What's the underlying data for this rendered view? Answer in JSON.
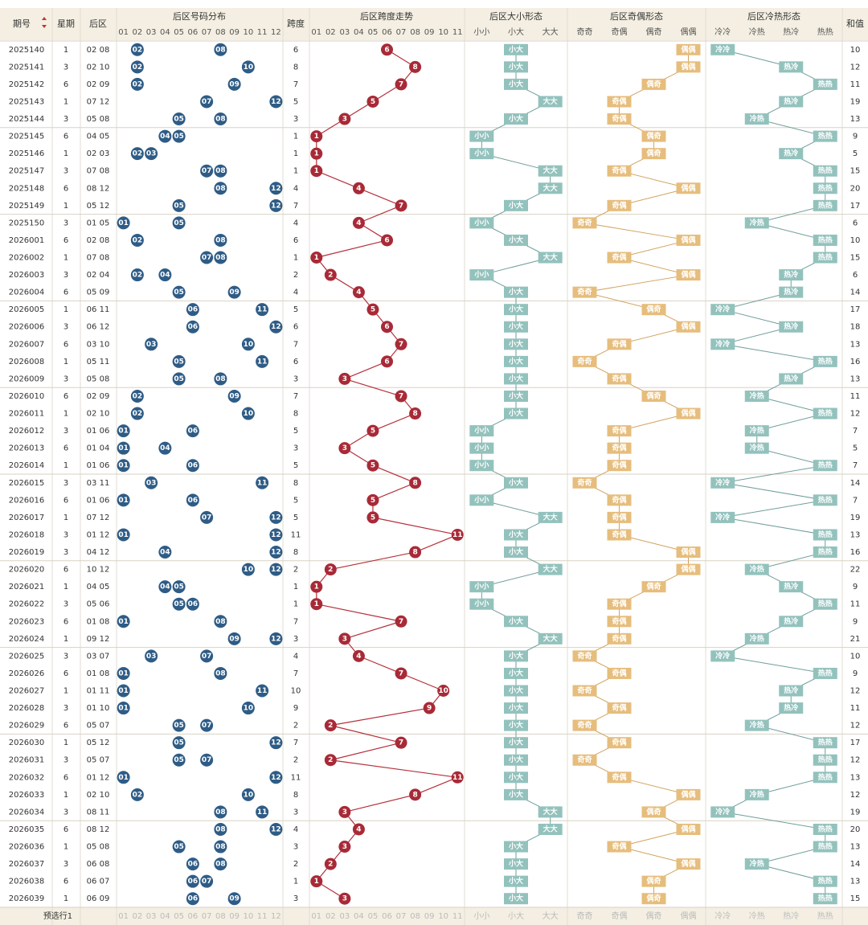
{
  "header": {
    "period": "期号",
    "weekday": "星期",
    "back": "后区",
    "dist": "后区号码分布",
    "span": "跨度",
    "trend": "后区跨度走势",
    "size": "后区大小形态",
    "parity": "后区奇偶形态",
    "hotcold": "后区冷热形态",
    "sum": "和值"
  },
  "number_labels": [
    "01",
    "02",
    "03",
    "04",
    "05",
    "06",
    "07",
    "08",
    "09",
    "10",
    "11",
    "12"
  ],
  "span_labels": [
    "01",
    "02",
    "03",
    "04",
    "05",
    "06",
    "07",
    "08",
    "09",
    "10",
    "11"
  ],
  "size_labels": [
    "小小",
    "小大",
    "大大"
  ],
  "parity_labels": [
    "奇奇",
    "奇偶",
    "偶奇",
    "偶偶"
  ],
  "hotcold_labels": [
    "冷冷",
    "冷热",
    "热冷",
    "热热"
  ],
  "rows": [
    [
      "2025140",
      1,
      "02 08",
      [
        "02",
        "08"
      ],
      6,
      "小大",
      "偶偶",
      "冷冷",
      10
    ],
    [
      "2025141",
      3,
      "02 10",
      [
        "02",
        "10"
      ],
      8,
      "小大",
      "偶偶",
      "热冷",
      12
    ],
    [
      "2025142",
      6,
      "02 09",
      [
        "02",
        "09"
      ],
      7,
      "小大",
      "偶奇",
      "热热",
      11
    ],
    [
      "2025143",
      1,
      "07 12",
      [
        "07",
        "12"
      ],
      5,
      "大大",
      "奇偶",
      "热冷",
      19
    ],
    [
      "2025144",
      3,
      "05 08",
      [
        "05",
        "08"
      ],
      3,
      "小大",
      "奇偶",
      "冷热",
      13
    ],
    [
      "2025145",
      6,
      "04 05",
      [
        "04",
        "05"
      ],
      1,
      "小小",
      "偶奇",
      "热热",
      9
    ],
    [
      "2025146",
      1,
      "02 03",
      [
        "02",
        "03"
      ],
      1,
      "小小",
      "偶奇",
      "热冷",
      5
    ],
    [
      "2025147",
      3,
      "07 08",
      [
        "07",
        "08"
      ],
      1,
      "大大",
      "奇偶",
      "热热",
      15
    ],
    [
      "2025148",
      6,
      "08 12",
      [
        "08",
        "12"
      ],
      4,
      "大大",
      "偶偶",
      "热热",
      20
    ],
    [
      "2025149",
      1,
      "05 12",
      [
        "05",
        "12"
      ],
      7,
      "小大",
      "奇偶",
      "热热",
      17
    ],
    [
      "2025150",
      3,
      "01 05",
      [
        "01",
        "05"
      ],
      4,
      "小小",
      "奇奇",
      "冷热",
      6
    ],
    [
      "2026001",
      6,
      "02 08",
      [
        "02",
        "08"
      ],
      6,
      "小大",
      "偶偶",
      "热热",
      10
    ],
    [
      "2026002",
      1,
      "07 08",
      [
        "07",
        "08"
      ],
      1,
      "大大",
      "奇偶",
      "热热",
      15
    ],
    [
      "2026003",
      3,
      "02 04",
      [
        "02",
        "04"
      ],
      2,
      "小小",
      "偶偶",
      "热冷",
      6
    ],
    [
      "2026004",
      6,
      "05 09",
      [
        "05",
        "09"
      ],
      4,
      "小大",
      "奇奇",
      "热冷",
      14
    ],
    [
      "2026005",
      1,
      "06 11",
      [
        "06",
        "11"
      ],
      5,
      "小大",
      "偶奇",
      "冷冷",
      17
    ],
    [
      "2026006",
      3,
      "06 12",
      [
        "06",
        "12"
      ],
      6,
      "小大",
      "偶偶",
      "热冷",
      18
    ],
    [
      "2026007",
      6,
      "03 10",
      [
        "03",
        "10"
      ],
      7,
      "小大",
      "奇偶",
      "冷冷",
      13
    ],
    [
      "2026008",
      1,
      "05 11",
      [
        "05",
        "11"
      ],
      6,
      "小大",
      "奇奇",
      "热热",
      16
    ],
    [
      "2026009",
      3,
      "05 08",
      [
        "05",
        "08"
      ],
      3,
      "小大",
      "奇偶",
      "热冷",
      13
    ],
    [
      "2026010",
      6,
      "02 09",
      [
        "02",
        "09"
      ],
      7,
      "小大",
      "偶奇",
      "冷热",
      11
    ],
    [
      "2026011",
      1,
      "02 10",
      [
        "02",
        "10"
      ],
      8,
      "小大",
      "偶偶",
      "热热",
      12
    ],
    [
      "2026012",
      3,
      "01 06",
      [
        "01",
        "06"
      ],
      5,
      "小小",
      "奇偶",
      "冷热",
      7
    ],
    [
      "2026013",
      6,
      "01 04",
      [
        "01",
        "04"
      ],
      3,
      "小小",
      "奇偶",
      "冷热",
      5
    ],
    [
      "2026014",
      1,
      "01 06",
      [
        "01",
        "06"
      ],
      5,
      "小小",
      "奇偶",
      "热热",
      7
    ],
    [
      "2026015",
      3,
      "03 11",
      [
        "03",
        "11"
      ],
      8,
      "小大",
      "奇奇",
      "冷冷",
      14
    ],
    [
      "2026016",
      6,
      "01 06",
      [
        "01",
        "06"
      ],
      5,
      "小小",
      "奇偶",
      "热热",
      7
    ],
    [
      "2026017",
      1,
      "07 12",
      [
        "07",
        "12"
      ],
      5,
      "大大",
      "奇偶",
      "冷冷",
      19
    ],
    [
      "2026018",
      3,
      "01 12",
      [
        "01",
        "12"
      ],
      11,
      "小大",
      "奇偶",
      "热热",
      13
    ],
    [
      "2026019",
      3,
      "04 12",
      [
        "04",
        "12"
      ],
      8,
      "小大",
      "偶偶",
      "热热",
      16
    ],
    [
      "2026020",
      6,
      "10 12",
      [
        "10",
        "12"
      ],
      2,
      "大大",
      "偶偶",
      "冷热",
      22
    ],
    [
      "2026021",
      1,
      "04 05",
      [
        "04",
        "05"
      ],
      1,
      "小小",
      "偶奇",
      "热冷",
      9
    ],
    [
      "2026022",
      3,
      "05 06",
      [
        "05",
        "06"
      ],
      1,
      "小小",
      "奇偶",
      "热热",
      11
    ],
    [
      "2026023",
      6,
      "01 08",
      [
        "01",
        "08"
      ],
      7,
      "小大",
      "奇偶",
      "热冷",
      9
    ],
    [
      "2026024",
      1,
      "09 12",
      [
        "09",
        "12"
      ],
      3,
      "大大",
      "奇偶",
      "冷热",
      21
    ],
    [
      "2026025",
      3,
      "03 07",
      [
        "03",
        "07"
      ],
      4,
      "小大",
      "奇奇",
      "冷冷",
      10
    ],
    [
      "2026026",
      6,
      "01 08",
      [
        "01",
        "08"
      ],
      7,
      "小大",
      "奇偶",
      "热热",
      9
    ],
    [
      "2026027",
      1,
      "01 11",
      [
        "01",
        "11"
      ],
      10,
      "小大",
      "奇奇",
      "热冷",
      12
    ],
    [
      "2026028",
      3,
      "01 10",
      [
        "01",
        "10"
      ],
      9,
      "小大",
      "奇偶",
      "热冷",
      11
    ],
    [
      "2026029",
      6,
      "05 07",
      [
        "05",
        "07"
      ],
      2,
      "小大",
      "奇奇",
      "冷热",
      12
    ],
    [
      "2026030",
      1,
      "05 12",
      [
        "05",
        "12"
      ],
      7,
      "小大",
      "奇偶",
      "热热",
      17
    ],
    [
      "2026031",
      3,
      "05 07",
      [
        "05",
        "07"
      ],
      2,
      "小大",
      "奇奇",
      "热热",
      12
    ],
    [
      "2026032",
      6,
      "01 12",
      [
        "01",
        "12"
      ],
      11,
      "小大",
      "奇偶",
      "热热",
      13
    ],
    [
      "2026033",
      1,
      "02 10",
      [
        "02",
        "10"
      ],
      8,
      "小大",
      "偶偶",
      "冷热",
      12
    ],
    [
      "2026034",
      3,
      "08 11",
      [
        "08",
        "11"
      ],
      3,
      "大大",
      "偶奇",
      "冷冷",
      19
    ],
    [
      "2026035",
      6,
      "08 12",
      [
        "08",
        "12"
      ],
      4,
      "大大",
      "偶偶",
      "热热",
      20
    ],
    [
      "2026036",
      1,
      "05 08",
      [
        "05",
        "08"
      ],
      3,
      "小大",
      "奇偶",
      "热热",
      13
    ],
    [
      "2026037",
      3,
      "06 08",
      [
        "06",
        "08"
      ],
      2,
      "小大",
      "偶偶",
      "冷热",
      14
    ],
    [
      "2026038",
      6,
      "06 07",
      [
        "06",
        "07"
      ],
      1,
      "小大",
      "偶奇",
      "热热",
      13
    ],
    [
      "2026039",
      1,
      "06 09",
      [
        "06",
        "09"
      ],
      3,
      "小大",
      "偶奇",
      "热热",
      15
    ]
  ],
  "footer": "预选行1"
}
